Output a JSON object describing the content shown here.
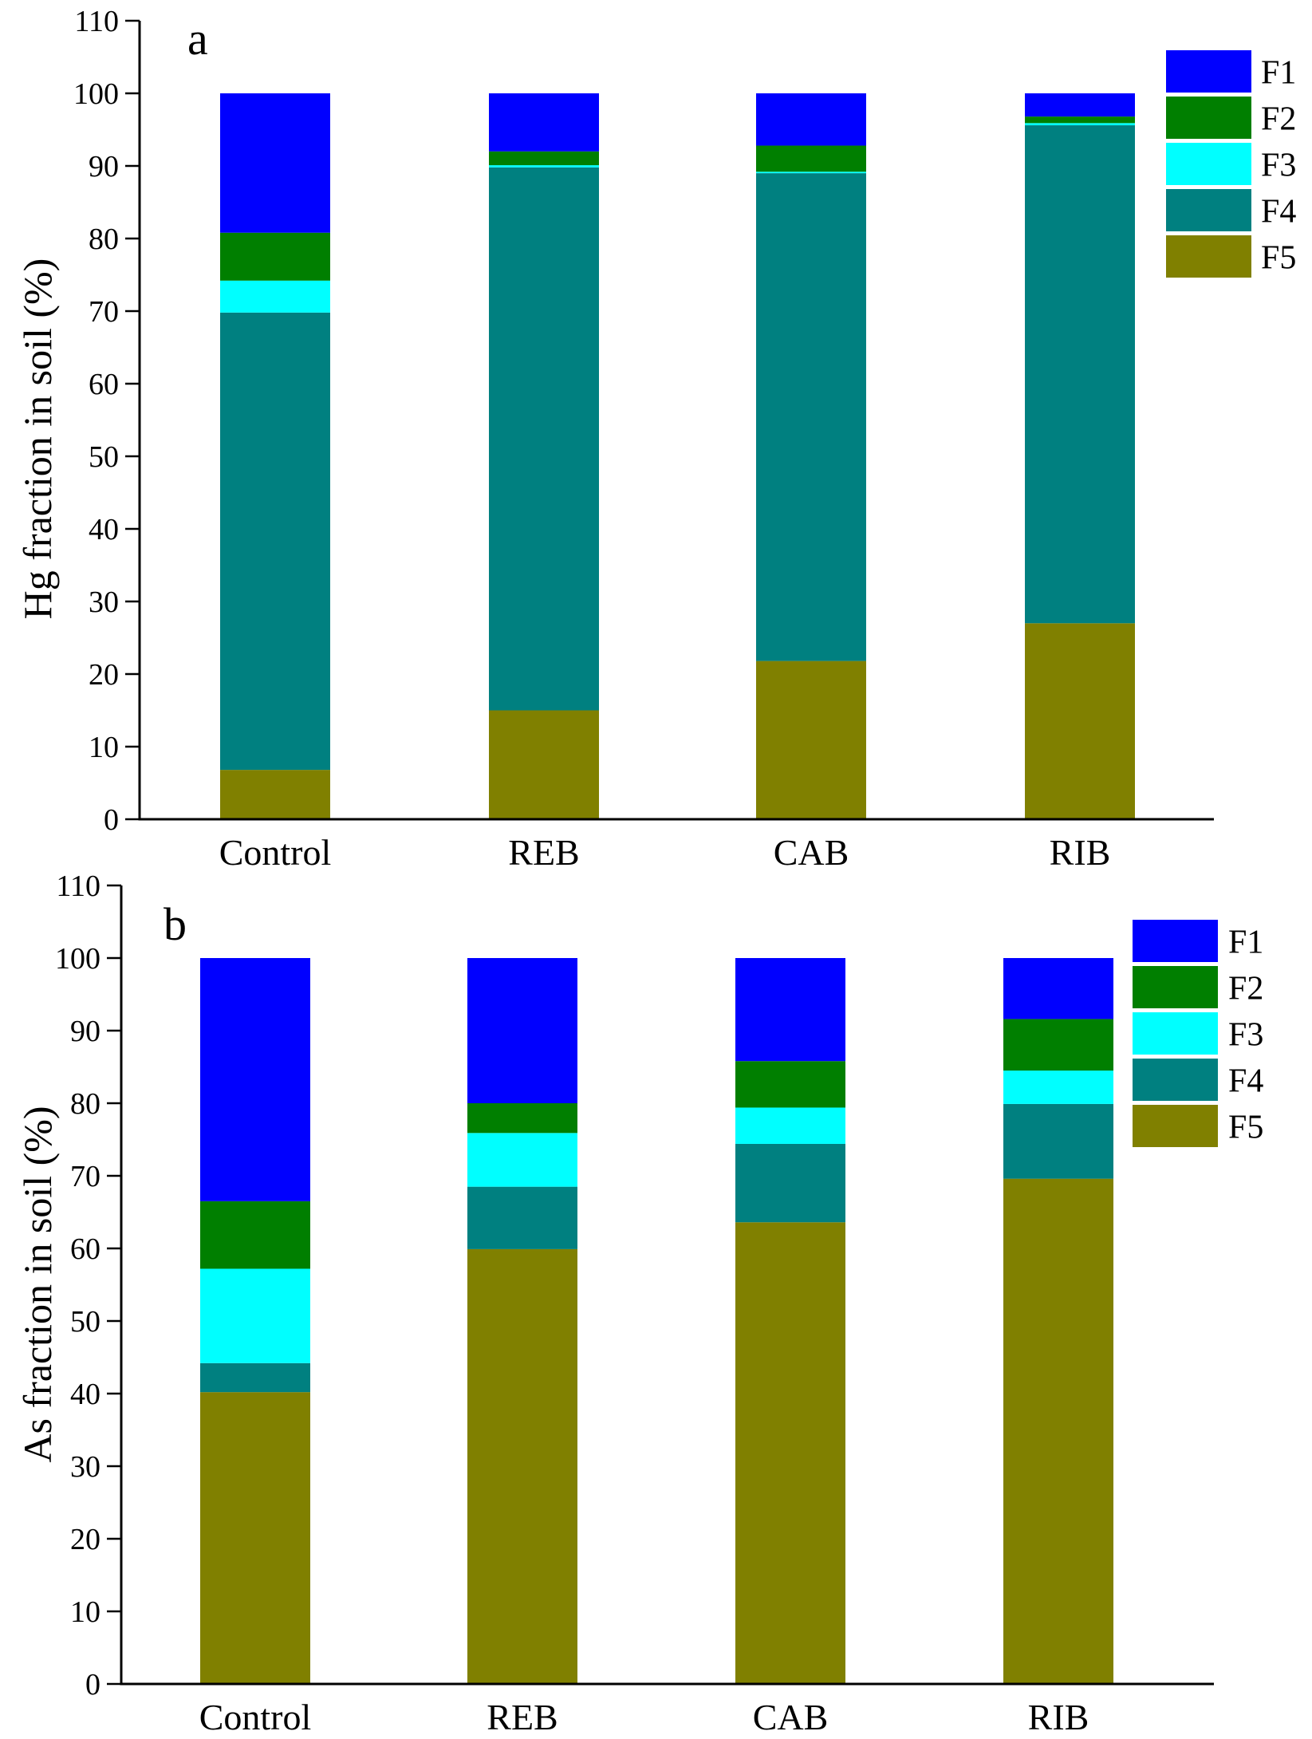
{
  "colors": {
    "F1": "#0000ff",
    "F2": "#007f00",
    "F3": "#00ffff",
    "F4": "#008080",
    "F5": "#808000",
    "axis": "#000000",
    "background": "#ffffff"
  },
  "chart_data": [
    {
      "type": "bar",
      "stacked": true,
      "panel_label": "a",
      "title": "",
      "xlabel": "",
      "ylabel": "Hg fraction in soil (%)",
      "ylim": [
        0,
        110
      ],
      "yticks": [
        0,
        10,
        20,
        30,
        40,
        50,
        60,
        70,
        80,
        90,
        100,
        110
      ],
      "grid": false,
      "legend_position": "top-right",
      "categories": [
        "Control",
        "REB",
        "CAB",
        "RIB"
      ],
      "series": [
        {
          "name": "F5",
          "values": [
            6.8,
            15.0,
            21.8,
            27.0
          ]
        },
        {
          "name": "F4",
          "values": [
            63.0,
            74.8,
            67.2,
            68.6
          ]
        },
        {
          "name": "F3",
          "values": [
            4.4,
            0.3,
            0.2,
            0.3
          ]
        },
        {
          "name": "F2",
          "values": [
            6.6,
            1.9,
            3.6,
            0.9
          ]
        },
        {
          "name": "F1",
          "values": [
            19.2,
            8.0,
            7.2,
            3.2
          ]
        }
      ]
    },
    {
      "type": "bar",
      "stacked": true,
      "panel_label": "b",
      "title": "",
      "xlabel": "",
      "ylabel": "As fraction in soil (%)",
      "ylim": [
        0,
        110
      ],
      "yticks": [
        0,
        10,
        20,
        30,
        40,
        50,
        60,
        70,
        80,
        90,
        100,
        110
      ],
      "grid": false,
      "legend_position": "top-right",
      "categories": [
        "Control",
        "REB",
        "CAB",
        "RIB"
      ],
      "series": [
        {
          "name": "F5",
          "values": [
            40.2,
            59.9,
            63.6,
            69.6
          ]
        },
        {
          "name": "F4",
          "values": [
            4.0,
            8.6,
            10.8,
            10.3
          ]
        },
        {
          "name": "F3",
          "values": [
            13.0,
            7.4,
            5.0,
            4.6
          ]
        },
        {
          "name": "F2",
          "values": [
            9.3,
            4.1,
            6.4,
            7.1
          ]
        },
        {
          "name": "F1",
          "values": [
            33.5,
            20.0,
            14.2,
            8.4
          ]
        }
      ]
    }
  ]
}
